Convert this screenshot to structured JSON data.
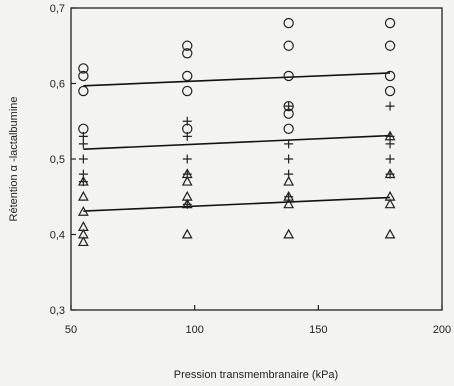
{
  "chart_data": {
    "type": "scatter",
    "xlabel": "Pression transmembranaire (kPa)",
    "ylabel": "Rétention α -lactalbumine",
    "xlim": [
      50,
      200
    ],
    "ylim": [
      0.3,
      0.7
    ],
    "x_ticks": [
      50,
      100,
      150,
      200
    ],
    "y_ticks": [
      0.3,
      0.4,
      0.5,
      0.6,
      0.7
    ],
    "x_tick_labels": [
      "50",
      "100",
      "150",
      "200"
    ],
    "y_tick_labels": [
      "0,3",
      "0,4",
      "0,5",
      "0,6",
      "0,7"
    ],
    "grid": false,
    "legend": "none",
    "series": [
      {
        "marker": "circle",
        "points": [
          [
            55,
            0.62
          ],
          [
            55,
            0.61
          ],
          [
            55,
            0.59
          ],
          [
            55,
            0.54
          ],
          [
            97,
            0.65
          ],
          [
            97,
            0.64
          ],
          [
            97,
            0.61
          ],
          [
            97,
            0.59
          ],
          [
            97,
            0.54
          ],
          [
            138,
            0.68
          ],
          [
            138,
            0.65
          ],
          [
            138,
            0.61
          ],
          [
            138,
            0.57
          ],
          [
            138,
            0.56
          ],
          [
            138,
            0.54
          ],
          [
            179,
            0.68
          ],
          [
            179,
            0.65
          ],
          [
            179,
            0.61
          ],
          [
            179,
            0.59
          ]
        ],
        "trend": [
          [
            55,
            0.597
          ],
          [
            179,
            0.614
          ]
        ]
      },
      {
        "marker": "plus",
        "points": [
          [
            55,
            0.53
          ],
          [
            55,
            0.52
          ],
          [
            55,
            0.5
          ],
          [
            55,
            0.48
          ],
          [
            55,
            0.47
          ],
          [
            97,
            0.55
          ],
          [
            97,
            0.53
          ],
          [
            97,
            0.5
          ],
          [
            97,
            0.48
          ],
          [
            97,
            0.44
          ],
          [
            138,
            0.57
          ],
          [
            138,
            0.52
          ],
          [
            138,
            0.5
          ],
          [
            138,
            0.48
          ],
          [
            138,
            0.45
          ],
          [
            179,
            0.57
          ],
          [
            179,
            0.53
          ],
          [
            179,
            0.52
          ],
          [
            179,
            0.5
          ],
          [
            179,
            0.48
          ]
        ],
        "trend": [
          [
            55,
            0.513
          ],
          [
            179,
            0.531
          ]
        ]
      },
      {
        "marker": "triangle",
        "points": [
          [
            55,
            0.47
          ],
          [
            55,
            0.45
          ],
          [
            55,
            0.43
          ],
          [
            55,
            0.41
          ],
          [
            55,
            0.4
          ],
          [
            55,
            0.39
          ],
          [
            97,
            0.48
          ],
          [
            97,
            0.47
          ],
          [
            97,
            0.45
          ],
          [
            97,
            0.44
          ],
          [
            97,
            0.4
          ],
          [
            138,
            0.47
          ],
          [
            138,
            0.45
          ],
          [
            138,
            0.44
          ],
          [
            138,
            0.4
          ],
          [
            179,
            0.53
          ],
          [
            179,
            0.48
          ],
          [
            179,
            0.45
          ],
          [
            179,
            0.44
          ],
          [
            179,
            0.4
          ]
        ],
        "trend": [
          [
            55,
            0.431
          ],
          [
            179,
            0.449
          ]
        ]
      }
    ]
  }
}
